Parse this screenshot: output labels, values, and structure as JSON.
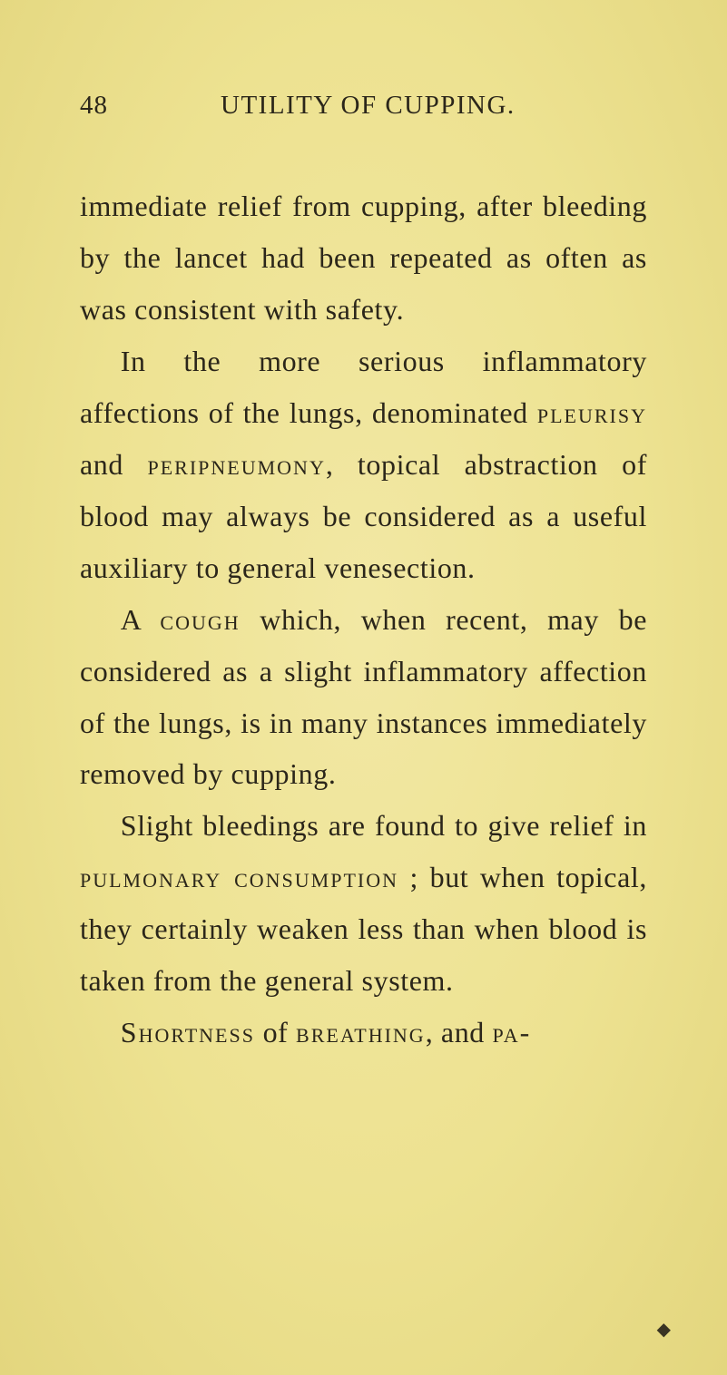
{
  "header": {
    "page_number": "48",
    "running_head": "UTILITY OF CUPPING."
  },
  "paragraphs": {
    "p1": {
      "pre": "immediate relief from cupping, after bleeding by the lancet had been re­peated as often as was consistent with safety."
    },
    "p2": {
      "pre": "In the more serious inflammatory affections of the lungs, denominated ",
      "sc1": "pleurisy",
      "mid1": " and ",
      "sc2": "peripneumony",
      "post": ", topical abstraction of blood may always be con­sidered as a useful auxiliary to general venesection."
    },
    "p3": {
      "pre": "A ",
      "sc1": "cough",
      "post": " which, when recent, may be considered as a slight inflammatory affec­tion of the lungs, is in many instances immediately removed by cupping."
    },
    "p4": {
      "pre": "Slight bleedings are found to give relief in ",
      "sc1": "pulmonary consumption",
      "post": " ; but when topical, they certainly weaken less than when blood is taken from the general system."
    },
    "p5": {
      "sc1": "Shortness",
      "mid1": " of ",
      "sc2": "breathing",
      "mid2": ", and ",
      "sc3": "pa-"
    }
  }
}
